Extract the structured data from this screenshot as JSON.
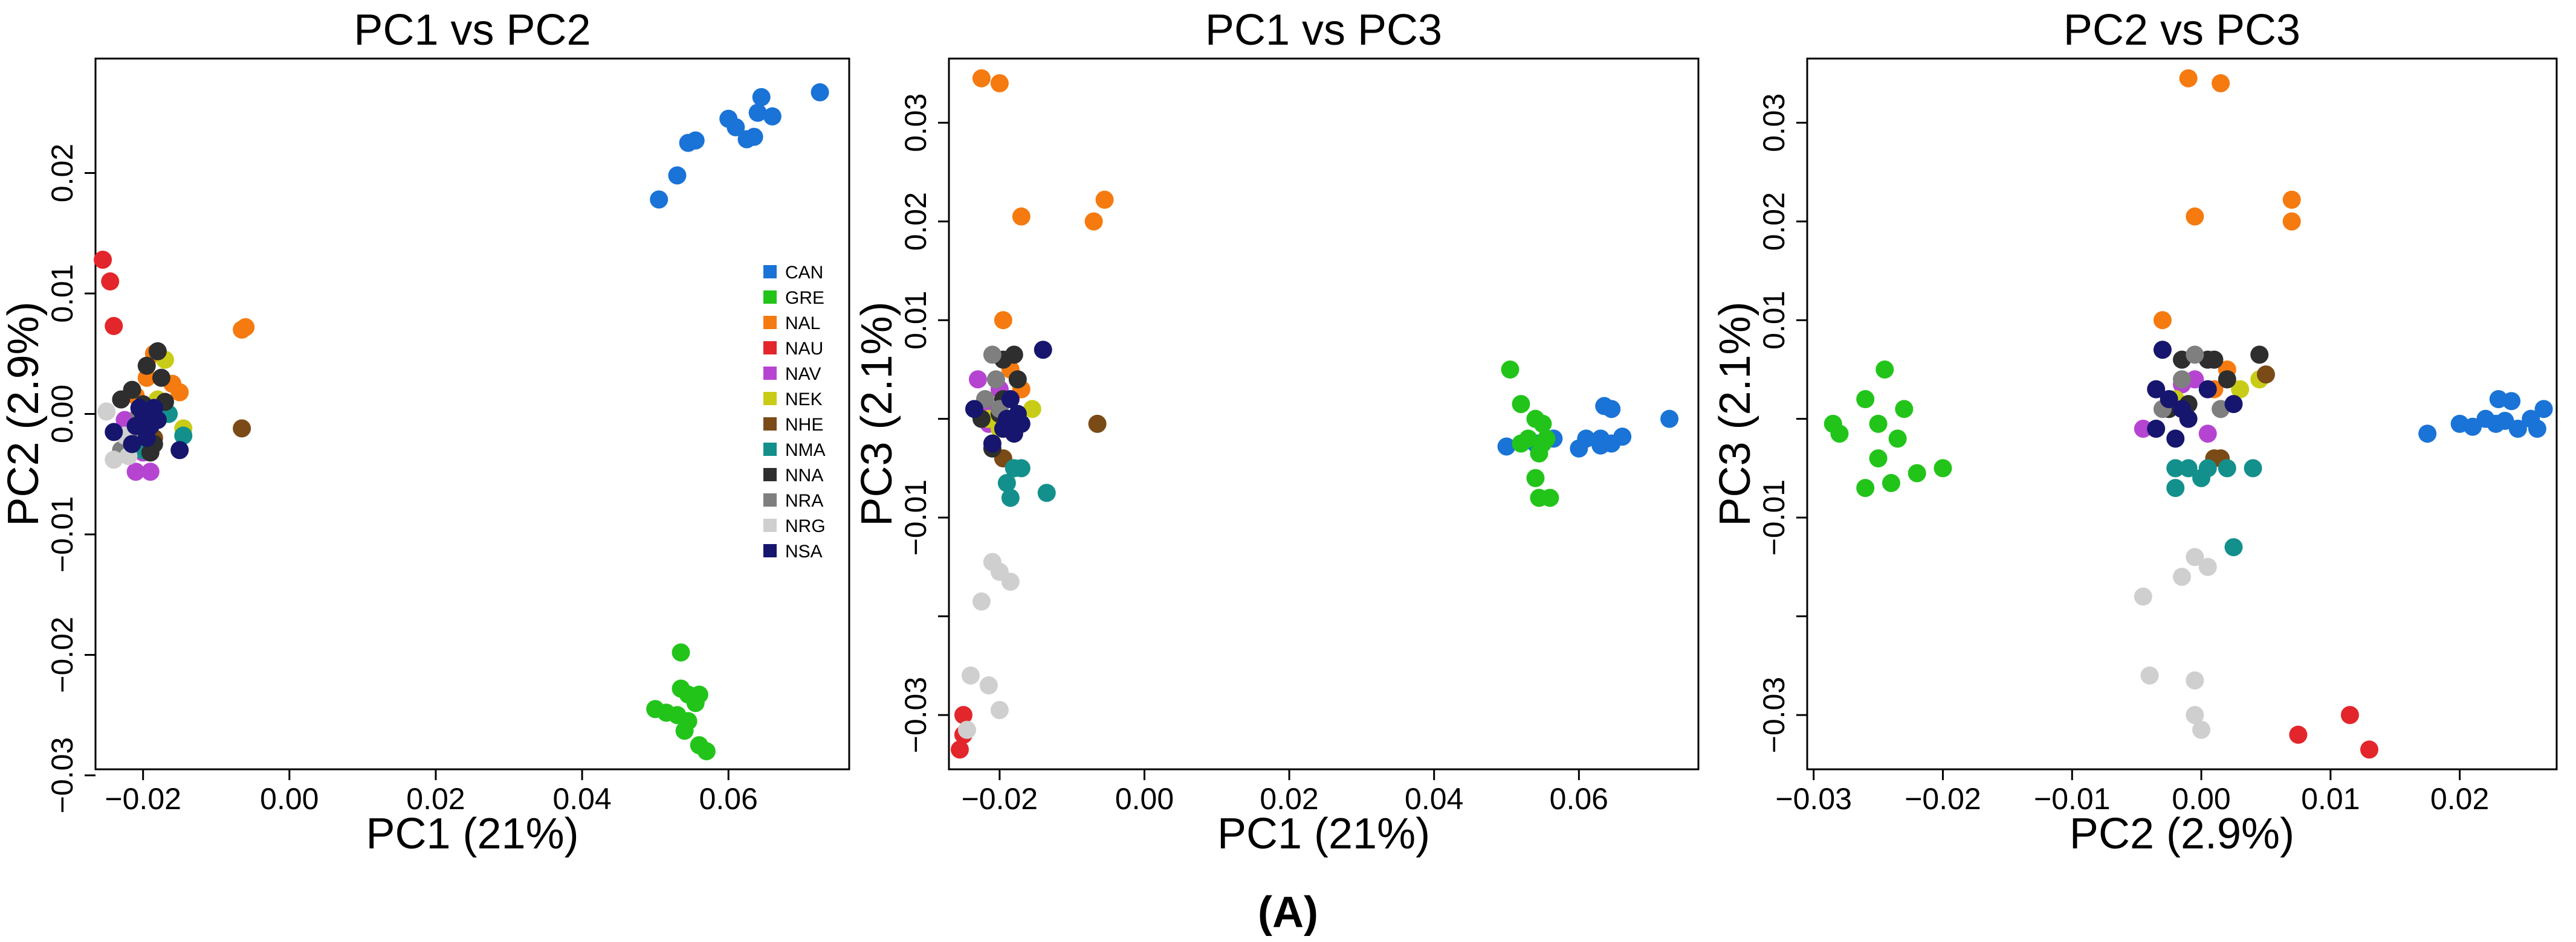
{
  "caption": "(A)",
  "legend": [
    {
      "code": "CAN",
      "color": "#1a73d6"
    },
    {
      "code": "GRE",
      "color": "#22c41a"
    },
    {
      "code": "NAL",
      "color": "#f57a10"
    },
    {
      "code": "NAU",
      "color": "#e3262b"
    },
    {
      "code": "NAV",
      "color": "#b545d1"
    },
    {
      "code": "NEK",
      "color": "#c9cc16"
    },
    {
      "code": "NHE",
      "color": "#7a4a17"
    },
    {
      "code": "NMA",
      "color": "#13908c"
    },
    {
      "code": "NNA",
      "color": "#2e2e2e"
    },
    {
      "code": "NRA",
      "color": "#7f7f7f"
    },
    {
      "code": "NRG",
      "color": "#cfcfcf"
    },
    {
      "code": "NSA",
      "color": "#16166e"
    }
  ],
  "chart_data": [
    {
      "type": "scatter",
      "title": "PC1 vs PC2",
      "xlabel": "PC1 (21%)",
      "ylabel": "PC2 (2.9%)",
      "xlim": [
        -0.0265,
        0.0765
      ],
      "ylim": [
        -0.0295,
        0.0295
      ],
      "xticks": [
        -0.02,
        0.0,
        0.02,
        0.04,
        0.06
      ],
      "xtick_labels": [
        "−0.02",
        "0.00",
        "0.02",
        "0.04",
        "0.06"
      ],
      "yticks": [
        -0.03,
        -0.02,
        -0.01,
        0.0,
        0.01,
        0.02
      ],
      "ytick_labels": [
        "−0.03",
        "−0.02",
        "−0.01",
        "0.00",
        "0.01",
        "0.02"
      ],
      "legend_position": "right",
      "groups": {
        "CAN": [
          [
            0.0725,
            0.0267
          ],
          [
            0.0645,
            0.0263
          ],
          [
            0.064,
            0.025
          ],
          [
            0.066,
            0.0247
          ],
          [
            0.061,
            0.0238
          ],
          [
            0.06,
            0.0245
          ],
          [
            0.0635,
            0.023
          ],
          [
            0.0625,
            0.0228
          ],
          [
            0.0545,
            0.0225
          ],
          [
            0.0555,
            0.0227
          ],
          [
            0.053,
            0.0198
          ],
          [
            0.0505,
            0.0178
          ]
        ],
        "GRE": [
          [
            0.0535,
            -0.0198
          ],
          [
            0.0535,
            -0.0228
          ],
          [
            0.0545,
            -0.0233
          ],
          [
            0.056,
            -0.0233
          ],
          [
            0.05,
            -0.0245
          ],
          [
            0.0515,
            -0.0248
          ],
          [
            0.053,
            -0.025
          ],
          [
            0.0545,
            -0.0255
          ],
          [
            0.0555,
            -0.024
          ],
          [
            0.056,
            -0.0275
          ],
          [
            0.057,
            -0.028
          ],
          [
            0.054,
            -0.0263
          ]
        ],
        "NAL": [
          [
            -0.0065,
            0.007
          ],
          [
            -0.006,
            0.0072
          ],
          [
            -0.0185,
            0.005
          ],
          [
            -0.015,
            0.0018
          ],
          [
            -0.016,
            0.0025
          ],
          [
            -0.021,
            0.0015
          ],
          [
            -0.0195,
            0.003
          ],
          [
            -0.0175,
            0.0008
          ]
        ],
        "NAU": [
          [
            -0.0255,
            0.0128
          ],
          [
            -0.0245,
            0.011
          ],
          [
            -0.024,
            0.0073
          ]
        ],
        "NAV": [
          [
            -0.021,
            -0.0048
          ],
          [
            -0.019,
            -0.0048
          ],
          [
            -0.02,
            -0.0032
          ],
          [
            -0.0225,
            -0.0005
          ]
        ],
        "NEK": [
          [
            -0.017,
            0.0045
          ],
          [
            -0.0145,
            -0.0012
          ],
          [
            -0.018,
            0.0012
          ]
        ],
        "NHE": [
          [
            -0.0065,
            -0.0012
          ],
          [
            -0.0185,
            -0.002
          ]
        ],
        "NMA": [
          [
            -0.0145,
            -0.0018
          ],
          [
            -0.0165,
            0.0
          ],
          [
            -0.02,
            -0.003
          ]
        ],
        "NNA": [
          [
            -0.018,
            0.0052
          ],
          [
            -0.0195,
            0.004
          ],
          [
            -0.0175,
            0.003
          ],
          [
            -0.0215,
            0.002
          ],
          [
            -0.023,
            0.0012
          ],
          [
            -0.02,
            0.0008
          ],
          [
            -0.017,
            0.001
          ],
          [
            -0.019,
            -0.0032
          ],
          [
            -0.0185,
            -0.0025
          ]
        ],
        "NRA": [
          [
            -0.0215,
            -0.002
          ],
          [
            -0.023,
            -0.003
          ],
          [
            -0.0205,
            0.0
          ]
        ],
        "NRG": [
          [
            -0.025,
            0.0002
          ],
          [
            -0.024,
            -0.0038
          ],
          [
            -0.022,
            -0.0035
          ],
          [
            -0.0225,
            -0.0018
          ]
        ],
        "NSA": [
          [
            -0.02,
            0.0
          ],
          [
            -0.019,
            -0.001
          ],
          [
            -0.021,
            -0.001
          ],
          [
            -0.0185,
            0.0005
          ],
          [
            -0.0195,
            -0.002
          ],
          [
            -0.0215,
            -0.0025
          ],
          [
            -0.018,
            -0.0005
          ],
          [
            -0.0205,
            0.0005
          ],
          [
            -0.024,
            -0.0015
          ],
          [
            -0.015,
            -0.003
          ],
          [
            -0.0195,
            -0.0005
          ]
        ]
      }
    },
    {
      "type": "scatter",
      "title": "PC1 vs PC3",
      "xlabel": "PC1 (21%)",
      "ylabel": "PC3 (2.1%)",
      "xlim": [
        -0.027,
        0.0765
      ],
      "ylim": [
        -0.0355,
        0.0365
      ],
      "xticks": [
        -0.02,
        0.0,
        0.02,
        0.04,
        0.06
      ],
      "xtick_labels": [
        "−0.02",
        "0.00",
        "0.02",
        "0.04",
        "0.06"
      ],
      "yticks": [
        -0.03,
        -0.02,
        -0.01,
        0.0,
        0.01,
        0.02,
        0.03
      ],
      "ytick_labels": [
        "−0.03",
        "",
        "−0.01",
        "",
        "0.01",
        "0.02",
        "0.03"
      ],
      "groups": {
        "CAN": [
          [
            0.0725,
            0.0
          ],
          [
            0.0635,
            0.0013
          ],
          [
            0.0645,
            0.001
          ],
          [
            0.066,
            -0.0018
          ],
          [
            0.063,
            -0.002
          ],
          [
            0.061,
            -0.002
          ],
          [
            0.06,
            -0.003
          ],
          [
            0.063,
            -0.0027
          ],
          [
            0.0645,
            -0.0025
          ],
          [
            0.05,
            -0.0028
          ],
          [
            0.0565,
            -0.002
          ],
          [
            0.054,
            -0.0025
          ]
        ],
        "GRE": [
          [
            0.0505,
            0.005
          ],
          [
            0.052,
            0.0015
          ],
          [
            0.054,
            0.0
          ],
          [
            0.055,
            -0.0005
          ],
          [
            0.053,
            -0.002
          ],
          [
            0.052,
            -0.0025
          ],
          [
            0.0555,
            -0.002
          ],
          [
            0.0545,
            -0.0035
          ],
          [
            0.054,
            -0.006
          ],
          [
            0.0545,
            -0.008
          ],
          [
            0.056,
            -0.008
          ],
          [
            0.055,
            -0.0025
          ]
        ],
        "NAL": [
          [
            -0.0225,
            0.0345
          ],
          [
            -0.02,
            0.034
          ],
          [
            -0.017,
            0.0205
          ],
          [
            -0.0055,
            0.0222
          ],
          [
            -0.007,
            0.02
          ],
          [
            -0.0195,
            0.01
          ],
          [
            -0.0185,
            0.005
          ],
          [
            -0.017,
            0.003
          ]
        ],
        "NAU": [
          [
            -0.025,
            -0.03
          ],
          [
            -0.025,
            -0.032
          ],
          [
            -0.0255,
            -0.0335
          ]
        ],
        "NAV": [
          [
            -0.023,
            0.004
          ],
          [
            -0.0215,
            0.001
          ],
          [
            -0.02,
            0.003
          ],
          [
            -0.0215,
            -0.0005
          ]
        ],
        "NEK": [
          [
            -0.0155,
            0.001
          ],
          [
            -0.02,
            -0.001
          ],
          [
            -0.0215,
            0.0
          ]
        ],
        "NHE": [
          [
            -0.0065,
            -0.0005
          ],
          [
            -0.0195,
            -0.004
          ]
        ],
        "NMA": [
          [
            -0.019,
            -0.0065
          ],
          [
            -0.018,
            -0.005
          ],
          [
            -0.017,
            -0.005
          ],
          [
            -0.0135,
            -0.0075
          ],
          [
            -0.0185,
            -0.008
          ]
        ],
        "NNA": [
          [
            -0.0195,
            0.006
          ],
          [
            -0.018,
            0.0065
          ],
          [
            -0.0175,
            0.004
          ],
          [
            -0.0225,
            0.0
          ],
          [
            -0.021,
            -0.003
          ],
          [
            -0.02,
            0.0005
          ],
          [
            -0.0195,
            0.002
          ]
        ],
        "NRA": [
          [
            -0.021,
            0.0065
          ],
          [
            -0.0205,
            0.004
          ],
          [
            -0.022,
            0.002
          ],
          [
            -0.02,
            0.001
          ]
        ],
        "NRG": [
          [
            -0.021,
            -0.0145
          ],
          [
            -0.02,
            -0.0155
          ],
          [
            -0.0185,
            -0.0165
          ],
          [
            -0.0225,
            -0.0185
          ],
          [
            -0.024,
            -0.026
          ],
          [
            -0.0215,
            -0.027
          ],
          [
            -0.02,
            -0.0295
          ],
          [
            -0.0245,
            -0.0315
          ]
        ],
        "NSA": [
          [
            -0.0185,
            0.002
          ],
          [
            -0.0175,
            0.0005
          ],
          [
            -0.019,
            0.0
          ],
          [
            -0.018,
            -0.0015
          ],
          [
            -0.0195,
            -0.001
          ],
          [
            -0.017,
            -0.0005
          ],
          [
            -0.014,
            0.007
          ],
          [
            -0.0235,
            0.001
          ],
          [
            -0.021,
            -0.0025
          ]
        ]
      }
    },
    {
      "type": "scatter",
      "title": "PC2 vs PC3",
      "xlabel": "PC2 (2.9%)",
      "ylabel": "PC3 (2.1%)",
      "xlim": [
        -0.0305,
        0.0275
      ],
      "ylim": [
        -0.0355,
        0.0365
      ],
      "xticks": [
        -0.03,
        -0.02,
        -0.01,
        0.0,
        0.01,
        0.02
      ],
      "xtick_labels": [
        "−0.03",
        "−0.02",
        "−0.01",
        "0.00",
        "0.01",
        "0.02"
      ],
      "yticks": [
        -0.03,
        -0.02,
        -0.01,
        0.0,
        0.01,
        0.02,
        0.03
      ],
      "ytick_labels": [
        "−0.03",
        "",
        "−0.01",
        "",
        "0.01",
        "0.02",
        "0.03"
      ],
      "groups": {
        "CAN": [
          [
            0.0265,
            0.001
          ],
          [
            0.024,
            0.0018
          ],
          [
            0.023,
            0.002
          ],
          [
            0.0255,
            0.0
          ],
          [
            0.022,
            0.0
          ],
          [
            0.0245,
            -0.001
          ],
          [
            0.02,
            -0.0005
          ],
          [
            0.0175,
            -0.0015
          ],
          [
            0.0235,
            -0.0002
          ],
          [
            0.0228,
            -0.0005
          ],
          [
            0.026,
            -0.001
          ],
          [
            0.021,
            -0.0008
          ]
        ],
        "GRE": [
          [
            -0.0245,
            0.005
          ],
          [
            -0.026,
            0.002
          ],
          [
            -0.025,
            -0.0005
          ],
          [
            -0.0285,
            -0.0005
          ],
          [
            -0.028,
            -0.0015
          ],
          [
            -0.023,
            0.001
          ],
          [
            -0.0235,
            -0.002
          ],
          [
            -0.02,
            -0.005
          ],
          [
            -0.022,
            -0.0055
          ],
          [
            -0.025,
            -0.004
          ],
          [
            -0.026,
            -0.007
          ],
          [
            -0.024,
            -0.0065
          ]
        ],
        "NAL": [
          [
            -0.001,
            0.0345
          ],
          [
            0.0015,
            0.034
          ],
          [
            -0.0005,
            0.0205
          ],
          [
            0.007,
            0.0222
          ],
          [
            0.007,
            0.02
          ],
          [
            -0.003,
            0.01
          ],
          [
            0.002,
            0.005
          ],
          [
            0.001,
            0.003
          ]
        ],
        "NAU": [
          [
            0.0075,
            -0.032
          ],
          [
            0.0115,
            -0.03
          ],
          [
            0.013,
            -0.0335
          ]
        ],
        "NAV": [
          [
            -0.0045,
            -0.001
          ],
          [
            -0.0015,
            0.0035
          ],
          [
            -0.0005,
            0.004
          ],
          [
            0.0005,
            -0.0015
          ]
        ],
        "NEK": [
          [
            0.0045,
            0.004
          ],
          [
            0.003,
            0.003
          ],
          [
            -0.002,
            0.002
          ]
        ],
        "NHE": [
          [
            0.005,
            0.0045
          ],
          [
            0.001,
            -0.004
          ],
          [
            0.0015,
            -0.004
          ]
        ],
        "NMA": [
          [
            -0.002,
            -0.005
          ],
          [
            0.0,
            -0.006
          ],
          [
            -0.001,
            -0.005
          ],
          [
            0.0005,
            -0.005
          ],
          [
            0.002,
            -0.005
          ],
          [
            0.004,
            -0.005
          ],
          [
            -0.002,
            -0.007
          ],
          [
            0.0025,
            -0.013
          ]
        ],
        "NNA": [
          [
            -0.0015,
            0.006
          ],
          [
            0.0005,
            0.006
          ],
          [
            0.001,
            0.006
          ],
          [
            0.0045,
            0.0065
          ],
          [
            0.002,
            0.004
          ],
          [
            -0.001,
            0.0015
          ],
          [
            -0.0025,
            0.001
          ]
        ],
        "NRA": [
          [
            -0.0005,
            0.0065
          ],
          [
            -0.0015,
            0.004
          ],
          [
            -0.003,
            0.001
          ],
          [
            0.0015,
            0.001
          ]
        ],
        "NRG": [
          [
            -0.0045,
            -0.018
          ],
          [
            -0.0005,
            -0.014
          ],
          [
            0.0005,
            -0.015
          ],
          [
            -0.0015,
            -0.016
          ],
          [
            -0.004,
            -0.026
          ],
          [
            -0.0005,
            -0.0265
          ],
          [
            -0.0005,
            -0.03
          ],
          [
            0.0,
            -0.0315
          ]
        ],
        "NSA": [
          [
            -0.003,
            0.007
          ],
          [
            -0.0035,
            0.003
          ],
          [
            -0.0025,
            0.002
          ],
          [
            -0.0015,
            0.001
          ],
          [
            -0.001,
            0.0
          ],
          [
            -0.0035,
            -0.001
          ],
          [
            -0.002,
            -0.002
          ],
          [
            0.0005,
            0.003
          ],
          [
            0.0025,
            0.0015
          ]
        ]
      }
    }
  ]
}
